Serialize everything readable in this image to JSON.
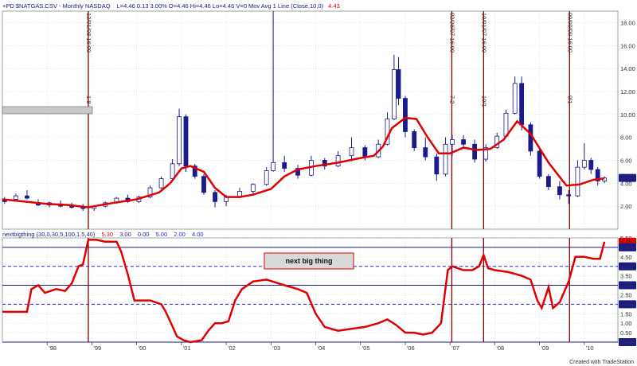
{
  "header": {
    "prefix": "+PD $NATGAS.CSV - Monthly  NASDAQ",
    "stats": "L=4.46  0.13  3.00%  O=4.46  Hi=4.46  Lo=4.46  V=0  Mov Avg 1 Line (Close,10,0)",
    "ma_value": "4.43"
  },
  "indicator_header": {
    "label": "nextbigthing (30,0,30,5,100,1.5,40)",
    "values": [
      "5.30",
      "3.00",
      "0.00",
      "5.00",
      "2.00",
      "4.00"
    ]
  },
  "annotation_box": {
    "text": "next big thing"
  },
  "legend_swatch_text": "",
  "footer": {
    "credit": "Created with TradeStation"
  },
  "colors": {
    "background": "#ffffff",
    "candle_up": "#ffffff",
    "candle_down": "#1a1a8c",
    "moving_average": "#e00000",
    "indicator": "#e00000",
    "event_lines": "#7a0000",
    "grid": "#cfd8cf",
    "ref_solid": "#1a1a8c",
    "ref_dashed": "#2a2ad0",
    "price_tag_bg": "#1a1a8c",
    "indicator_tag_bg": "#e00000"
  },
  "chart_data": [
    {
      "type": "candlestick",
      "title": "$NATGAS.CSV - Monthly",
      "x_tick_labels": [
        "'98",
        "'99",
        "'00",
        "'01",
        "'02",
        "'03",
        "'04",
        "'05",
        "'06",
        "'07",
        "'08",
        "'09",
        "'10"
      ],
      "ylim": [
        0,
        19
      ],
      "y_ticks": [
        2.0,
        4.0,
        6.0,
        8.0,
        10.0,
        12.0,
        14.0,
        16.0,
        18.0
      ],
      "grid": true,
      "last_price_tag": "4.46",
      "event_markers": [
        {
          "date": "1998.92",
          "label": "12/01/98 16:00",
          "sublabel": "1.8"
        },
        {
          "date": "2007.04",
          "label": "02/28/07 16:00",
          "sublabel": "7.2"
        },
        {
          "date": "2007.75",
          "label": "10/01/07 16:00",
          "sublabel": "10/1"
        },
        {
          "date": "2009.67",
          "label": "09/09/09 16:00",
          "sublabel": "9/1"
        }
      ],
      "moving_average": {
        "name": "Mov Avg 1 Line (Close,10,0)",
        "x": [
          1997.0,
          1997.5,
          1998.0,
          1998.5,
          1998.92,
          1999.2,
          1999.5,
          2000.0,
          2000.5,
          2000.75,
          2001.0,
          2001.2,
          2001.5,
          2001.75,
          2002.0,
          2002.3,
          2002.6,
          2003.0,
          2003.3,
          2003.6,
          2004.0,
          2004.5,
          2005.0,
          2005.3,
          2005.5,
          2005.7,
          2006.0,
          2006.25,
          2006.5,
          2006.75,
          2007.0,
          2007.3,
          2007.6,
          2007.9,
          2008.2,
          2008.5,
          2008.8,
          2009.2,
          2009.6,
          2009.9,
          2010.2,
          2010.45
        ],
        "y": [
          2.6,
          2.4,
          2.2,
          2.1,
          1.9,
          2.1,
          2.3,
          2.6,
          3.2,
          4.0,
          5.3,
          5.5,
          5.0,
          3.6,
          2.8,
          2.8,
          3.0,
          3.5,
          4.6,
          5.2,
          5.5,
          5.8,
          6.2,
          6.4,
          7.2,
          8.8,
          9.7,
          9.6,
          8.0,
          6.6,
          6.6,
          7.1,
          6.9,
          7.0,
          7.8,
          9.4,
          8.3,
          5.8,
          3.8,
          3.9,
          4.3,
          4.43
        ]
      },
      "candles": [
        {
          "x": 1997.05,
          "o": 2.5,
          "h": 2.8,
          "l": 2.2,
          "c": 2.4
        },
        {
          "x": 1997.3,
          "o": 2.6,
          "h": 3.1,
          "l": 2.4,
          "c": 2.9
        },
        {
          "x": 1997.55,
          "o": 2.9,
          "h": 3.4,
          "l": 2.6,
          "c": 2.7
        },
        {
          "x": 1997.8,
          "o": 2.3,
          "h": 2.6,
          "l": 2.0,
          "c": 2.1
        },
        {
          "x": 1998.05,
          "o": 2.1,
          "h": 2.4,
          "l": 1.9,
          "c": 2.3
        },
        {
          "x": 1998.3,
          "o": 2.2,
          "h": 2.5,
          "l": 1.9,
          "c": 2.0
        },
        {
          "x": 1998.55,
          "o": 2.0,
          "h": 2.3,
          "l": 1.8,
          "c": 1.9
        },
        {
          "x": 1998.8,
          "o": 1.9,
          "h": 2.2,
          "l": 1.6,
          "c": 1.8
        },
        {
          "x": 1999.05,
          "o": 1.8,
          "h": 2.1,
          "l": 1.6,
          "c": 2.0
        },
        {
          "x": 1999.3,
          "o": 2.0,
          "h": 2.4,
          "l": 1.9,
          "c": 2.3
        },
        {
          "x": 1999.55,
          "o": 2.3,
          "h": 2.8,
          "l": 2.2,
          "c": 2.7
        },
        {
          "x": 1999.8,
          "o": 2.7,
          "h": 3.0,
          "l": 2.3,
          "c": 2.4
        },
        {
          "x": 2000.05,
          "o": 2.4,
          "h": 2.9,
          "l": 2.3,
          "c": 2.8
        },
        {
          "x": 2000.3,
          "o": 2.8,
          "h": 3.8,
          "l": 2.7,
          "c": 3.6
        },
        {
          "x": 2000.55,
          "o": 3.6,
          "h": 4.6,
          "l": 3.5,
          "c": 4.4
        },
        {
          "x": 2000.8,
          "o": 4.4,
          "h": 6.1,
          "l": 4.2,
          "c": 5.7
        },
        {
          "x": 2000.95,
          "o": 5.7,
          "h": 10.5,
          "l": 5.5,
          "c": 9.8
        },
        {
          "x": 2001.1,
          "o": 9.8,
          "h": 10.0,
          "l": 5.0,
          "c": 5.5
        },
        {
          "x": 2001.3,
          "o": 5.5,
          "h": 5.7,
          "l": 4.4,
          "c": 4.6
        },
        {
          "x": 2001.5,
          "o": 4.6,
          "h": 4.8,
          "l": 3.0,
          "c": 3.2
        },
        {
          "x": 2001.75,
          "o": 3.2,
          "h": 3.4,
          "l": 1.9,
          "c": 2.4
        },
        {
          "x": 2002.0,
          "o": 2.4,
          "h": 3.0,
          "l": 2.0,
          "c": 2.8
        },
        {
          "x": 2002.3,
          "o": 2.8,
          "h": 3.6,
          "l": 2.7,
          "c": 3.3
        },
        {
          "x": 2002.6,
          "o": 3.3,
          "h": 4.0,
          "l": 3.0,
          "c": 3.9
        },
        {
          "x": 2002.9,
          "o": 3.9,
          "h": 5.4,
          "l": 3.8,
          "c": 5.1
        },
        {
          "x": 2003.05,
          "o": 5.1,
          "h": 19.0,
          "l": 5.0,
          "c": 5.8
        },
        {
          "x": 2003.3,
          "o": 5.8,
          "h": 6.4,
          "l": 5.0,
          "c": 5.3
        },
        {
          "x": 2003.6,
          "o": 5.3,
          "h": 5.6,
          "l": 4.4,
          "c": 4.7
        },
        {
          "x": 2003.9,
          "o": 4.7,
          "h": 6.4,
          "l": 4.6,
          "c": 6.0
        },
        {
          "x": 2004.2,
          "o": 6.0,
          "h": 6.2,
          "l": 5.2,
          "c": 5.5
        },
        {
          "x": 2004.5,
          "o": 5.5,
          "h": 6.8,
          "l": 5.4,
          "c": 6.4
        },
        {
          "x": 2004.8,
          "o": 6.4,
          "h": 8.0,
          "l": 5.9,
          "c": 7.1
        },
        {
          "x": 2005.1,
          "o": 7.1,
          "h": 7.3,
          "l": 6.0,
          "c": 6.3
        },
        {
          "x": 2005.4,
          "o": 6.3,
          "h": 7.8,
          "l": 6.2,
          "c": 7.4
        },
        {
          "x": 2005.6,
          "o": 7.4,
          "h": 10.2,
          "l": 7.3,
          "c": 9.6
        },
        {
          "x": 2005.75,
          "o": 9.6,
          "h": 15.2,
          "l": 9.5,
          "c": 13.9
        },
        {
          "x": 2005.85,
          "o": 13.9,
          "h": 15.0,
          "l": 10.8,
          "c": 11.4
        },
        {
          "x": 2006.0,
          "o": 11.4,
          "h": 11.6,
          "l": 8.0,
          "c": 8.5
        },
        {
          "x": 2006.2,
          "o": 8.5,
          "h": 8.7,
          "l": 6.8,
          "c": 7.1
        },
        {
          "x": 2006.45,
          "o": 7.1,
          "h": 8.0,
          "l": 6.0,
          "c": 6.3
        },
        {
          "x": 2006.7,
          "o": 6.3,
          "h": 6.6,
          "l": 4.2,
          "c": 4.8
        },
        {
          "x": 2006.9,
          "o": 4.8,
          "h": 8.0,
          "l": 4.6,
          "c": 7.4
        },
        {
          "x": 2007.05,
          "o": 7.4,
          "h": 8.2,
          "l": 6.4,
          "c": 7.8
        },
        {
          "x": 2007.3,
          "o": 7.8,
          "h": 8.2,
          "l": 7.2,
          "c": 7.4
        },
        {
          "x": 2007.55,
          "o": 7.4,
          "h": 7.8,
          "l": 5.8,
          "c": 6.1
        },
        {
          "x": 2007.8,
          "o": 6.1,
          "h": 7.4,
          "l": 5.9,
          "c": 7.1
        },
        {
          "x": 2008.05,
          "o": 7.1,
          "h": 8.4,
          "l": 7.0,
          "c": 8.1
        },
        {
          "x": 2008.25,
          "o": 8.1,
          "h": 10.4,
          "l": 8.0,
          "c": 10.1
        },
        {
          "x": 2008.45,
          "o": 10.1,
          "h": 13.3,
          "l": 10.0,
          "c": 12.7
        },
        {
          "x": 2008.6,
          "o": 12.7,
          "h": 13.3,
          "l": 8.6,
          "c": 9.1
        },
        {
          "x": 2008.8,
          "o": 9.1,
          "h": 9.3,
          "l": 6.4,
          "c": 6.8
        },
        {
          "x": 2009.0,
          "o": 6.8,
          "h": 7.0,
          "l": 4.4,
          "c": 4.6
        },
        {
          "x": 2009.2,
          "o": 4.6,
          "h": 4.8,
          "l": 3.4,
          "c": 3.7
        },
        {
          "x": 2009.45,
          "o": 3.7,
          "h": 4.2,
          "l": 2.6,
          "c": 3.0
        },
        {
          "x": 2009.65,
          "o": 3.0,
          "h": 3.4,
          "l": 2.2,
          "c": 2.9
        },
        {
          "x": 2009.85,
          "o": 2.9,
          "h": 6.0,
          "l": 2.8,
          "c": 5.4
        },
        {
          "x": 2010.0,
          "o": 5.4,
          "h": 7.5,
          "l": 5.2,
          "c": 6.0
        },
        {
          "x": 2010.15,
          "o": 6.0,
          "h": 6.2,
          "l": 4.8,
          "c": 5.2
        },
        {
          "x": 2010.3,
          "o": 5.2,
          "h": 5.4,
          "l": 3.8,
          "c": 4.2
        },
        {
          "x": 2010.45,
          "o": 4.2,
          "h": 4.6,
          "l": 4.0,
          "c": 4.46
        }
      ]
    },
    {
      "type": "line",
      "title": "nextbigthing (30,0,30,5,100,1.5,40)",
      "ylim": [
        0,
        5.5
      ],
      "y_ticks": [
        0.0,
        0.5,
        1.0,
        1.5,
        2.0,
        2.5,
        3.0,
        3.5,
        4.0,
        4.5,
        5.0,
        5.5
      ],
      "reference_levels": [
        {
          "value": 5.0,
          "style": "solid"
        },
        {
          "value": 4.0,
          "style": "dashed"
        },
        {
          "value": 3.0,
          "style": "solid"
        },
        {
          "value": 2.0,
          "style": "dashed"
        },
        {
          "value": 0.0,
          "style": "solid"
        }
      ],
      "value_tags": [
        "5.30",
        "5.00",
        "4.00",
        "3.00",
        "2.00",
        "0.00"
      ],
      "series": [
        {
          "x": [
            1997.0,
            1997.55,
            1997.65,
            1997.8,
            1997.95,
            1998.2,
            1998.4,
            1998.55,
            1998.7,
            1998.8,
            1998.92,
            1999.1,
            1999.3,
            1999.55,
            1999.65,
            1999.8,
            1999.95,
            2000.3,
            2000.55,
            2000.65,
            2000.9,
            2001.05,
            2001.2,
            2001.45,
            2001.6,
            2001.75,
            2001.9,
            2002.05,
            2002.2,
            2002.35,
            2002.6,
            2002.9,
            2003.3,
            2003.6,
            2003.8,
            2004.0,
            2004.2,
            2004.5,
            2004.8,
            2005.1,
            2005.4,
            2005.6,
            2005.8,
            2006.0,
            2006.2,
            2006.4,
            2006.6,
            2006.8,
            2006.95,
            2007.05,
            2007.3,
            2007.5,
            2007.65,
            2007.75,
            2007.85,
            2008.0,
            2008.3,
            2008.6,
            2008.8,
            2008.95,
            2009.05,
            2009.2,
            2009.3,
            2009.45,
            2009.65,
            2009.8,
            2010.0,
            2010.2,
            2010.35,
            2010.45
          ],
          "y": [
            1.6,
            1.6,
            2.8,
            3.0,
            2.6,
            2.8,
            2.7,
            3.1,
            4.0,
            4.1,
            5.4,
            5.4,
            5.3,
            5.3,
            4.8,
            3.6,
            2.2,
            2.2,
            2.0,
            1.6,
            0.3,
            0.1,
            0.0,
            0.1,
            0.6,
            1.0,
            1.0,
            1.1,
            2.2,
            2.8,
            3.2,
            3.3,
            3.0,
            2.8,
            2.6,
            1.5,
            0.8,
            0.6,
            0.7,
            0.8,
            1.0,
            1.2,
            0.9,
            0.5,
            0.5,
            0.4,
            0.5,
            1.0,
            3.8,
            4.0,
            3.8,
            3.8,
            4.0,
            4.6,
            3.9,
            3.8,
            3.7,
            3.5,
            3.3,
            2.2,
            1.8,
            2.9,
            1.8,
            2.1,
            3.2,
            4.5,
            4.5,
            4.4,
            4.4,
            5.3
          ]
        }
      ]
    }
  ]
}
